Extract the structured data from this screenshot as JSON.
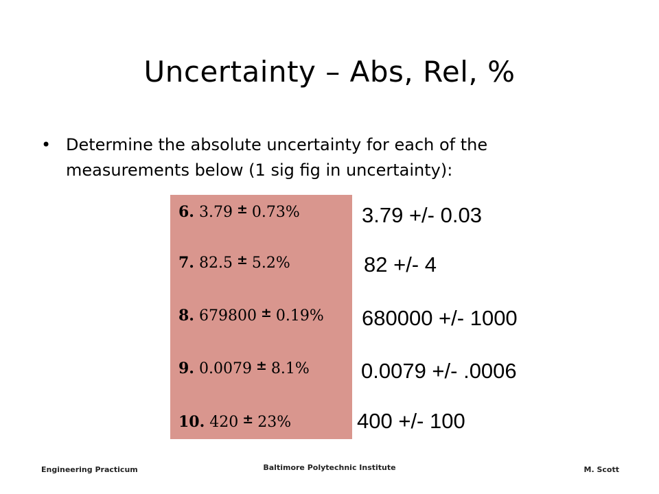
{
  "title": "Uncertainty – Abs, Rel, %",
  "bullet": {
    "line1": "Determine the absolute uncertainty for each of the",
    "line2": "measurements below (1 sig fig in uncertainty):"
  },
  "problems": [
    {
      "num": "6.",
      "value": "3.79",
      "pm": "±",
      "pct": "0.73%"
    },
    {
      "num": "7.",
      "value": "82.5",
      "pm": "±",
      "pct": "5.2%"
    },
    {
      "num": "8.",
      "value": "679800",
      "pm": "±",
      "pct": "0.19%"
    },
    {
      "num": "9.",
      "value": "0.0079",
      "pm": "±",
      "pct": "8.1%"
    },
    {
      "num": "10.",
      "value": "420",
      "pm": "±",
      "pct": "23%"
    }
  ],
  "answers": [
    "3.79 +/- 0.03",
    "82 +/- 4",
    "680000 +/- 1000",
    "0.0079 +/- .0006",
    "400 +/- 100"
  ],
  "footer": {
    "left": "Engineering Practicum",
    "center": "Baltimore Polytechnic Institute",
    "right": "M. Scott"
  },
  "colors": {
    "problem_box": "#d9968e"
  }
}
